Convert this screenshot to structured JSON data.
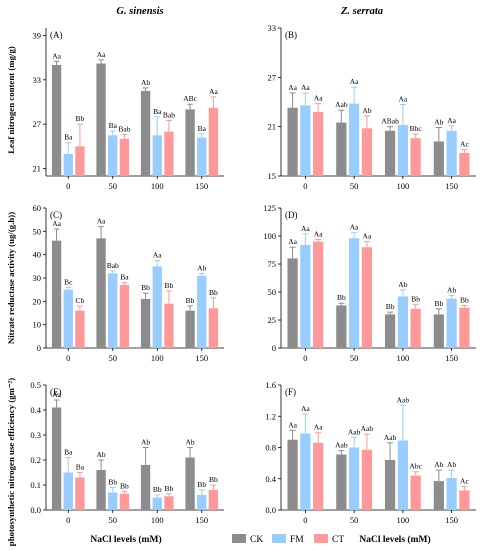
{
  "figure": {
    "column_titles": [
      "G. sinensis",
      "Z. serrata"
    ],
    "y_labels": [
      "Leaf nitrogen content (mg/g)",
      "Nitrate reductase activity (ug/(g.h))",
      "photosynthetic nitrogen use efficiency (gm⁻²)"
    ],
    "x_label": "NaCl levels (mM)",
    "legend": [
      {
        "name": "CK",
        "color": "#8c8c8c"
      },
      {
        "name": "FM",
        "color": "#99ccff"
      },
      {
        "name": "CT",
        "color": "#ff9999"
      }
    ]
  },
  "chart_data": [
    {
      "panel": "(A)",
      "type": "bar",
      "categories": [
        "0",
        "50",
        "100",
        "150"
      ],
      "ylim": [
        20,
        40
      ],
      "yticks": [
        "21",
        "27",
        "33",
        "39"
      ],
      "ytick_values": [
        21,
        27,
        33,
        39
      ],
      "series": [
        {
          "name": "CK",
          "values": [
            35.0,
            35.2,
            31.5,
            29.0
          ],
          "errors": [
            0.5,
            0.5,
            0.4,
            0.7
          ],
          "labels": [
            "Aa",
            "Aa",
            "Ab",
            "ABc"
          ]
        },
        {
          "name": "FM",
          "values": [
            23.0,
            25.5,
            25.5,
            25.2
          ],
          "errors": [
            1.5,
            0.6,
            2.5,
            0.5
          ],
          "labels": [
            "Ba",
            "Ba",
            "Ba",
            "Ba"
          ]
        },
        {
          "name": "CT",
          "values": [
            24.0,
            25.0,
            26.0,
            29.2
          ],
          "errors": [
            3.0,
            0.6,
            1.5,
            1.5
          ],
          "labels": [
            "Bb",
            "Bab",
            "Bab",
            "Aa"
          ]
        }
      ]
    },
    {
      "panel": "(B)",
      "type": "bar",
      "categories": [
        "0",
        "50",
        "100",
        "150"
      ],
      "ylim": [
        15,
        33
      ],
      "yticks": [
        "15",
        "21",
        "27",
        "33"
      ],
      "ytick_values": [
        15,
        21,
        27,
        33
      ],
      "series": [
        {
          "name": "CK",
          "values": [
            23.3,
            21.5,
            20.5,
            19.2
          ],
          "errors": [
            1.8,
            1.5,
            0.5,
            1.7
          ],
          "labels": [
            "Aa",
            "Aab",
            "ABab",
            "Ab"
          ]
        },
        {
          "name": "FM",
          "values": [
            23.6,
            23.8,
            21.2,
            20.5
          ],
          "errors": [
            1.5,
            2.0,
            2.5,
            0.6
          ],
          "labels": [
            "Aa",
            "Aa",
            "Aa",
            "Aa"
          ]
        },
        {
          "name": "CT",
          "values": [
            22.8,
            20.8,
            19.6,
            17.8
          ],
          "errors": [
            1.0,
            1.5,
            0.5,
            0.4
          ],
          "labels": [
            "Aa",
            "Ab",
            "Bbc",
            "Ac"
          ]
        }
      ]
    },
    {
      "panel": "(C)",
      "type": "bar",
      "categories": [
        "0",
        "50",
        "100",
        "150"
      ],
      "ylim": [
        0,
        60
      ],
      "yticks": [
        "0",
        "10",
        "20",
        "30",
        "40",
        "50",
        "60"
      ],
      "ytick_values": [
        0,
        10,
        20,
        30,
        40,
        50,
        60
      ],
      "series": [
        {
          "name": "CK",
          "values": [
            46.0,
            47.0,
            21.0,
            16.0
          ],
          "errors": [
            5.0,
            5.0,
            2.5,
            2.0
          ],
          "labels": [
            "Aa",
            "Aa",
            "Bb",
            "Bb"
          ]
        },
        {
          "name": "FM",
          "values": [
            25.0,
            32.0,
            35.0,
            31.0
          ],
          "errors": [
            1.0,
            1.0,
            2.5,
            1.0
          ],
          "labels": [
            "Bc",
            "Bab",
            "Aa",
            "Ab"
          ]
        },
        {
          "name": "CT",
          "values": [
            16.0,
            27.0,
            19.0,
            17.0
          ],
          "errors": [
            2.0,
            1.0,
            5.5,
            4.5
          ],
          "labels": [
            "Cb",
            "Ba",
            "Bb",
            "Bb"
          ]
        }
      ]
    },
    {
      "panel": "(D)",
      "type": "bar",
      "categories": [
        "0",
        "50",
        "100",
        "150"
      ],
      "ylim": [
        0,
        125
      ],
      "yticks": [
        "0",
        "25",
        "50",
        "75",
        "100",
        "125"
      ],
      "ytick_values": [
        0,
        25,
        50,
        75,
        100,
        125
      ],
      "series": [
        {
          "name": "CK",
          "values": [
            80,
            38,
            30,
            30
          ],
          "errors": [
            10,
            2,
            2,
            5
          ],
          "labels": [
            "Aa",
            "Bb",
            "Bb",
            "Bb"
          ]
        },
        {
          "name": "FM",
          "values": [
            92,
            98,
            46,
            44
          ],
          "errors": [
            10,
            5,
            6,
            3
          ],
          "labels": [
            "Aa",
            "Aa",
            "Ab",
            "Ab"
          ]
        },
        {
          "name": "CT",
          "values": [
            95,
            90,
            35,
            36
          ],
          "errors": [
            2,
            5,
            4,
            2
          ],
          "labels": [
            "Aa",
            "Aa",
            "Bb",
            "Bb"
          ]
        }
      ]
    },
    {
      "panel": "(E)",
      "type": "bar",
      "categories": [
        "0",
        "50",
        "100",
        "150"
      ],
      "ylim": [
        0.0,
        0.5
      ],
      "yticks": [
        "0.0",
        "0.1",
        "0.2",
        "0.3",
        "0.4",
        "0.5"
      ],
      "ytick_values": [
        0.0,
        0.1,
        0.2,
        0.3,
        0.4,
        0.5
      ],
      "series": [
        {
          "name": "CK",
          "values": [
            0.41,
            0.16,
            0.18,
            0.21
          ],
          "errors": [
            0.03,
            0.04,
            0.07,
            0.04
          ],
          "labels": [
            "Aa",
            "Ab",
            "Ab",
            "Ab"
          ]
        },
        {
          "name": "FM",
          "values": [
            0.15,
            0.07,
            0.05,
            0.06
          ],
          "errors": [
            0.06,
            0.02,
            0.01,
            0.02
          ],
          "labels": [
            "Ba",
            "Bb",
            "Bb",
            "Bb"
          ]
        },
        {
          "name": "CT",
          "values": [
            0.13,
            0.065,
            0.055,
            0.08
          ],
          "errors": [
            0.02,
            0.01,
            0.01,
            0.02
          ],
          "labels": [
            "Ba",
            "Bb",
            "Bb",
            "Bb"
          ]
        }
      ]
    },
    {
      "panel": "(F)",
      "type": "bar",
      "categories": [
        "0",
        "50",
        "100",
        "150"
      ],
      "ylim": [
        0.0,
        1.6
      ],
      "yticks": [
        "0.0",
        "0.4",
        "0.8",
        "1.2",
        "1.6"
      ],
      "ytick_values": [
        0.0,
        0.4,
        0.8,
        1.2,
        1.6
      ],
      "series": [
        {
          "name": "CK",
          "values": [
            0.9,
            0.71,
            0.64,
            0.37
          ],
          "errors": [
            0.12,
            0.05,
            0.22,
            0.14
          ],
          "labels": [
            "Aa",
            "Aab",
            "Aab",
            "Ab"
          ]
        },
        {
          "name": "FM",
          "values": [
            0.98,
            0.8,
            0.89,
            0.41
          ],
          "errors": [
            0.25,
            0.13,
            0.45,
            0.1
          ],
          "labels": [
            "Aa",
            "Aab",
            "Aab",
            "Ab"
          ]
        },
        {
          "name": "CT",
          "values": [
            0.86,
            0.77,
            0.44,
            0.25
          ],
          "errors": [
            0.13,
            0.2,
            0.05,
            0.05
          ],
          "labels": [
            "Aa",
            "Aab",
            "Abc",
            "Ac"
          ]
        }
      ]
    }
  ]
}
